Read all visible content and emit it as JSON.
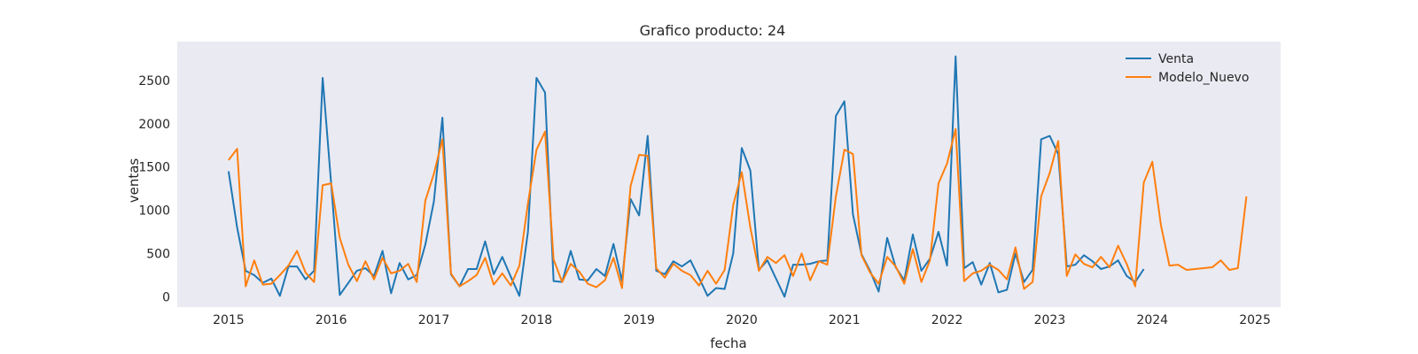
{
  "chart_data": {
    "type": "line",
    "title": "Grafico producto: 24",
    "xlabel": "fecha",
    "ylabel": "ventas",
    "x_start": "2015-01",
    "x_step": "month",
    "xlim": [
      "2014-07",
      "2025-04"
    ],
    "ylim": [
      -120,
      2950
    ],
    "xticks": [
      "2015",
      "2016",
      "2017",
      "2018",
      "2019",
      "2020",
      "2021",
      "2022",
      "2023",
      "2024",
      "2025"
    ],
    "yticks": [
      0,
      500,
      1000,
      1500,
      2000,
      2500
    ],
    "grid": false,
    "background": "#eaeaf2",
    "legend_position": "top-right",
    "series": [
      {
        "name": "Venta",
        "color": "#1f77b4",
        "values": [
          1450,
          800,
          300,
          250,
          160,
          210,
          10,
          350,
          350,
          200,
          300,
          2530,
          1300,
          20,
          160,
          300,
          330,
          240,
          530,
          40,
          390,
          200,
          250,
          600,
          1100,
          2070,
          260,
          120,
          320,
          320,
          640,
          260,
          460,
          230,
          10,
          750,
          2530,
          2360,
          180,
          170,
          530,
          200,
          190,
          320,
          240,
          610,
          180,
          1130,
          940,
          1860,
          300,
          260,
          410,
          350,
          420,
          220,
          10,
          100,
          90,
          500,
          1720,
          1460,
          310,
          420,
          210,
          0,
          370,
          370,
          380,
          410,
          420,
          2090,
          2260,
          950,
          490,
          300,
          60,
          680,
          340,
          190,
          720,
          300,
          440,
          750,
          360,
          2780,
          330,
          400,
          140,
          390,
          50,
          80,
          500,
          170,
          310,
          1820,
          1860,
          1650,
          350,
          370,
          480,
          410,
          320,
          350,
          420,
          240,
          170,
          320
        ]
      },
      {
        "name": "Modelo_Nuevo",
        "color": "#ff7f0e",
        "values": [
          1580,
          1710,
          120,
          420,
          140,
          150,
          250,
          360,
          530,
          280,
          170,
          1290,
          1310,
          680,
          370,
          180,
          410,
          200,
          450,
          270,
          300,
          380,
          170,
          1110,
          1420,
          1820,
          270,
          120,
          180,
          250,
          450,
          140,
          270,
          130,
          360,
          1080,
          1700,
          1910,
          430,
          170,
          380,
          290,
          150,
          110,
          190,
          450,
          100,
          1280,
          1640,
          1630,
          330,
          220,
          380,
          300,
          250,
          130,
          300,
          150,
          310,
          1060,
          1440,
          800,
          300,
          460,
          390,
          480,
          240,
          500,
          190,
          410,
          370,
          1160,
          1700,
          1650,
          480,
          280,
          150,
          460,
          350,
          150,
          550,
          170,
          420,
          1310,
          1540,
          1940,
          180,
          270,
          300,
          370,
          310,
          200,
          570,
          90,
          170,
          1160,
          1430,
          1800,
          240,
          490,
          380,
          340,
          460,
          340,
          590,
          380,
          120,
          1320,
          1560,
          830,
          360,
          370,
          310,
          320,
          330,
          340,
          420,
          310,
          330,
          1160
        ]
      }
    ]
  }
}
